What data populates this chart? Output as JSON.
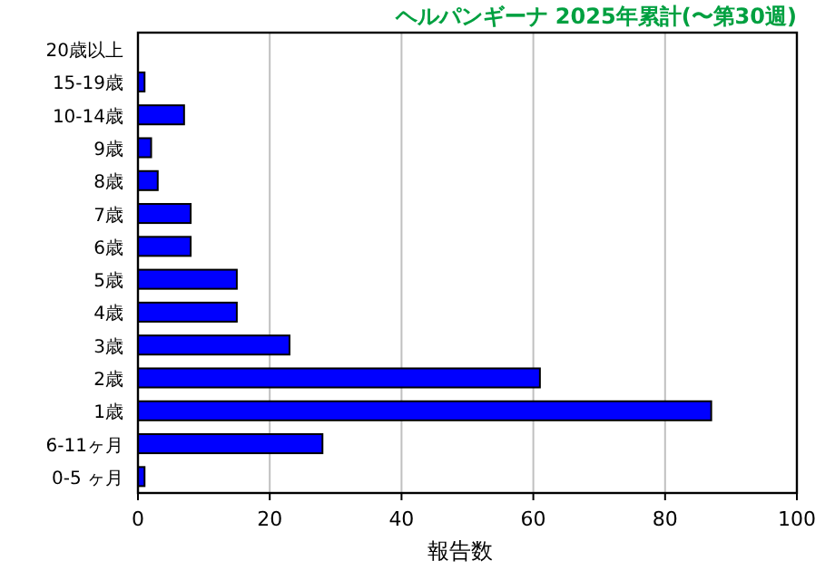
{
  "chart_data": {
    "type": "bar",
    "orientation": "horizontal",
    "title": "ヘルパンギーナ 2025年累計(〜第30週)",
    "xlabel": "報告数",
    "categories": [
      "20歳以上",
      "15-19歳",
      "10-14歳",
      "9歳",
      "8歳",
      "7歳",
      "6歳",
      "5歳",
      "4歳",
      "3歳",
      "2歳",
      "1歳",
      "6-11ヶ月",
      "0-5 ヶ月"
    ],
    "values": [
      0,
      1,
      7,
      2,
      3,
      8,
      8,
      15,
      15,
      23,
      61,
      87,
      28,
      1
    ],
    "color": "#0000ff",
    "xlim": [
      0,
      100
    ],
    "xticks": [
      0,
      20,
      40,
      60,
      80,
      100
    ],
    "grid": "x"
  }
}
